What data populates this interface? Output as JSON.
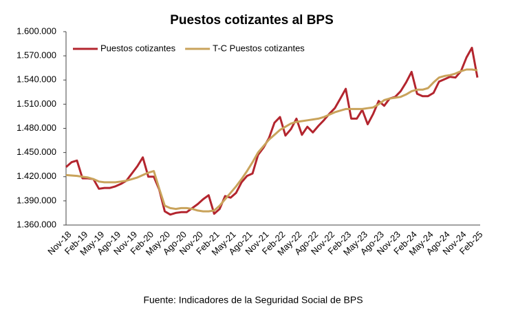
{
  "chart_data": {
    "type": "line",
    "title": "Puestos cotizantes al BPS",
    "source": "Fuente: Indicadores de la Seguridad Social de BPS",
    "categories": [
      "Nov-18",
      null,
      null,
      "Feb-19",
      null,
      null,
      "May-19",
      null,
      null,
      "Ago-19",
      null,
      null,
      "Nov-19",
      null,
      null,
      "Feb-20",
      null,
      null,
      "May-20",
      null,
      null,
      "Ago-20",
      null,
      null,
      "Nov-20",
      null,
      null,
      "Feb-21",
      null,
      null,
      "May-21",
      null,
      null,
      "Ago-21",
      null,
      null,
      "Nov-21",
      null,
      null,
      "Feb-22",
      null,
      null,
      "May-22",
      null,
      null,
      "Ago-22",
      null,
      null,
      "Nov-22",
      null,
      null,
      "Feb-23",
      null,
      null,
      "May-23",
      null,
      null,
      "Ago-23",
      null,
      null,
      "Nov-23",
      null,
      null,
      "Feb-24",
      null,
      null,
      "May-24",
      null,
      null,
      "Ago-24",
      null,
      null,
      "Nov-24",
      null,
      null,
      "Feb-25"
    ],
    "series": [
      {
        "name": "Puestos cotizantes",
        "color": "#b3252e",
        "values": [
          1432000,
          1438000,
          1440000,
          1418000,
          1418000,
          1417000,
          1405000,
          1406000,
          1406000,
          1408000,
          1411000,
          1415000,
          1424000,
          1433000,
          1444000,
          1420000,
          1420000,
          1404000,
          1377000,
          1373000,
          1375000,
          1376000,
          1376000,
          1381000,
          1386000,
          1392000,
          1397000,
          1374000,
          1380000,
          1396000,
          1394000,
          1400000,
          1413000,
          1421000,
          1424000,
          1447000,
          1456000,
          1468000,
          1487000,
          1494000,
          1471000,
          1479000,
          1492000,
          1472000,
          1482000,
          1475000,
          1483000,
          1490000,
          1498000,
          1505000,
          1517000,
          1529000,
          1492000,
          1492000,
          1503000,
          1485000,
          1498000,
          1514000,
          1508000,
          1517000,
          1519000,
          1526000,
          1537000,
          1550000,
          1523000,
          1520000,
          1520000,
          1524000,
          1538000,
          1541000,
          1544000,
          1543000,
          1551000,
          1568000,
          1580000,
          1543000
        ]
      },
      {
        "name": "T-C Puestos cotizantes",
        "color": "#c9a35b",
        "values": [
          1422000,
          1421500,
          1421000,
          1420000,
          1419000,
          1417000,
          1414000,
          1413000,
          1413000,
          1413000,
          1414000,
          1415000,
          1417000,
          1419000,
          1422000,
          1425000,
          1427000,
          1405000,
          1384000,
          1381000,
          1380000,
          1381000,
          1381000,
          1380000,
          1378000,
          1377000,
          1377000,
          1378000,
          1384000,
          1392000,
          1400000,
          1408000,
          1417000,
          1427000,
          1438000,
          1450000,
          1458000,
          1466000,
          1472000,
          1478000,
          1482000,
          1486000,
          1488000,
          1489000,
          1490000,
          1491000,
          1492000,
          1494000,
          1497000,
          1500000,
          1502000,
          1504000,
          1504000,
          1504000,
          1504000,
          1505000,
          1506000,
          1510000,
          1515000,
          1517000,
          1518000,
          1519000,
          1522000,
          1526000,
          1528000,
          1528000,
          1530000,
          1537000,
          1543000,
          1545000,
          1546000,
          1548000,
          1551000,
          1553000,
          1553000,
          1552000
        ]
      }
    ],
    "ylim": [
      1360000,
      1600000
    ],
    "yticks": [
      {
        "value": 1360000,
        "label": "1.360.000"
      },
      {
        "value": 1390000,
        "label": "1.390.000"
      },
      {
        "value": 1420000,
        "label": "1.420.000"
      },
      {
        "value": 1450000,
        "label": "1.450.000"
      },
      {
        "value": 1480000,
        "label": "1.480.000"
      },
      {
        "value": 1510000,
        "label": "1.510.000"
      },
      {
        "value": 1540000,
        "label": "1.540.000"
      },
      {
        "value": 1570000,
        "label": "1.570.000"
      },
      {
        "value": 1600000,
        "label": "1.600.000"
      }
    ],
    "grid": false,
    "legend": "upper left"
  }
}
